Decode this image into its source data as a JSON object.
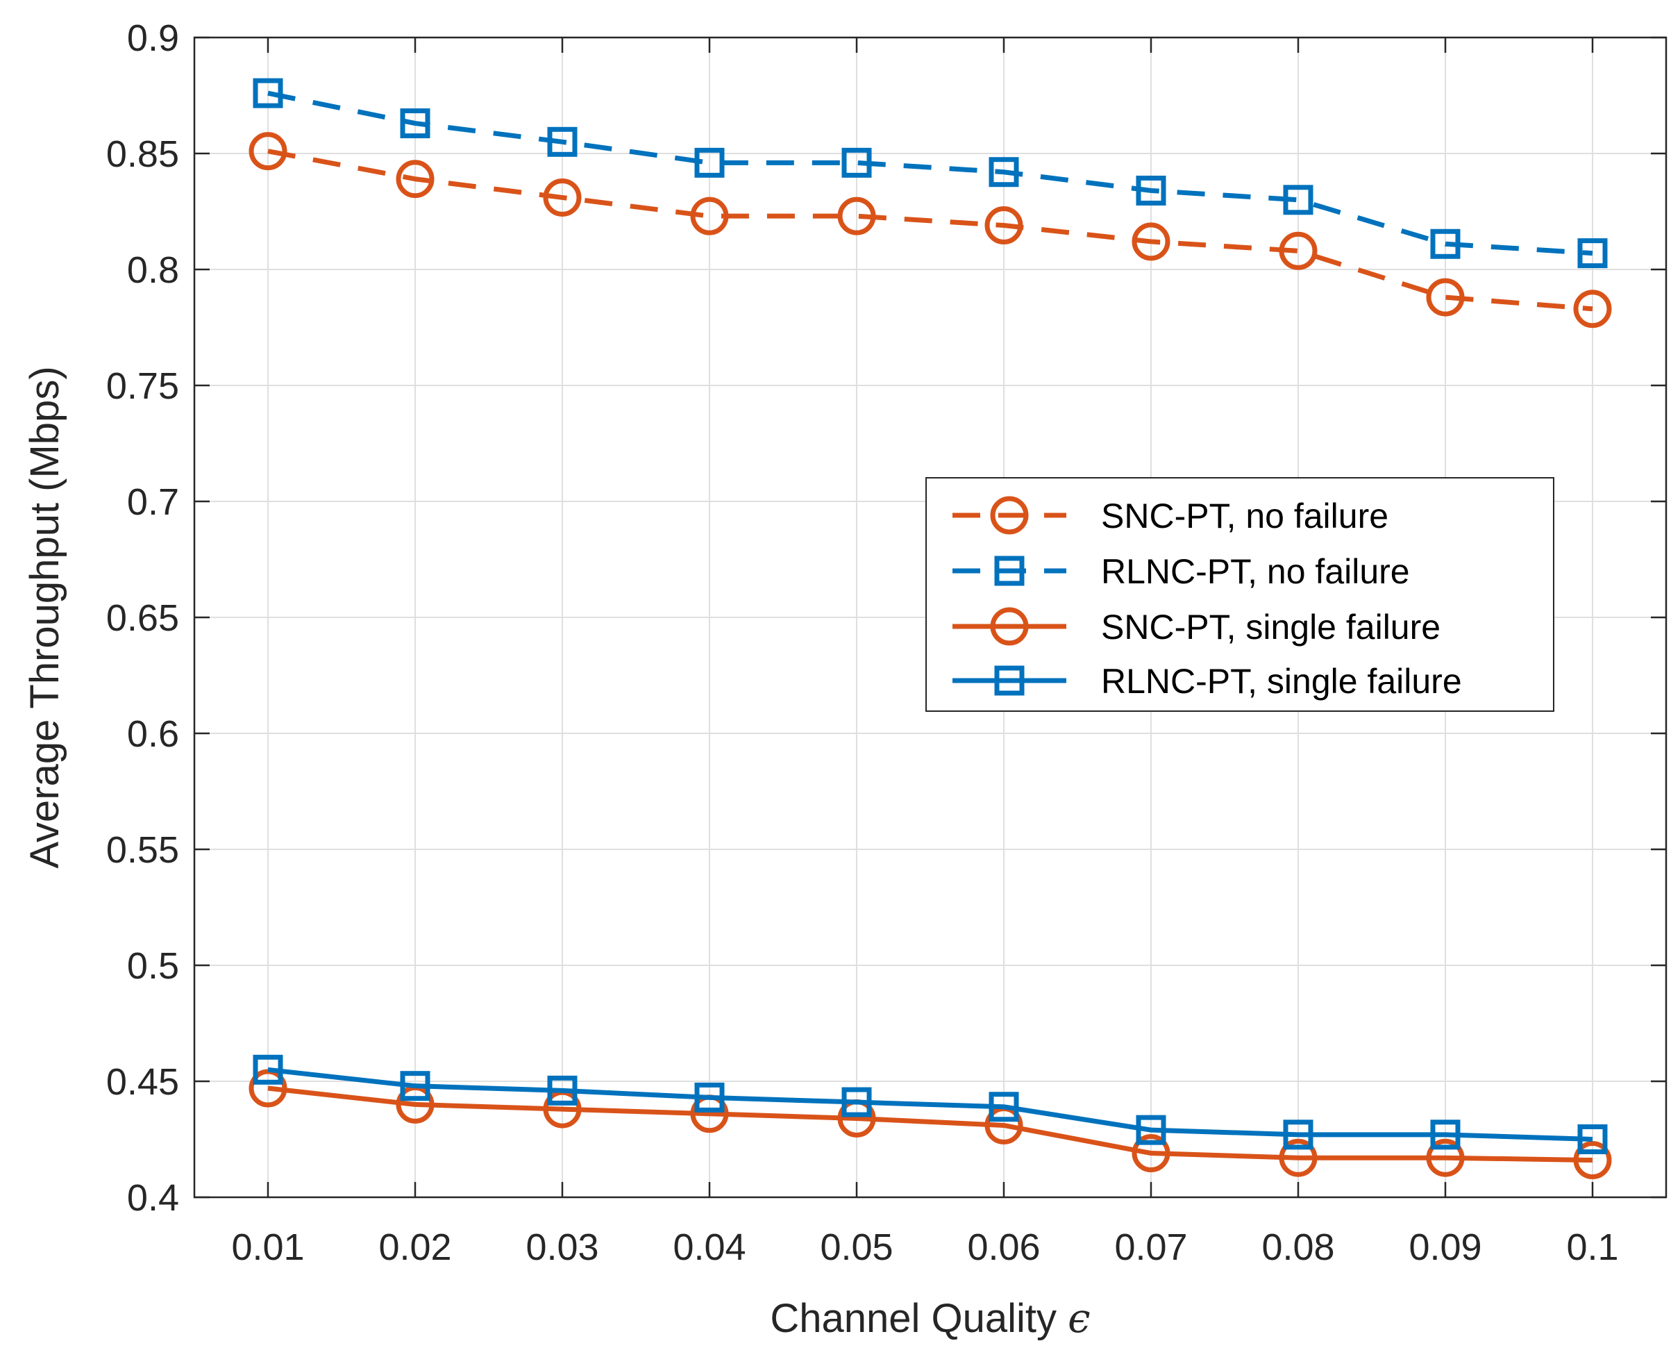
{
  "chart_data": {
    "type": "line",
    "title": "",
    "xlabel": "Channel Quality",
    "xlabel_symbol": "ϵ",
    "ylabel": "Average Throughput (Mbps)",
    "x": [
      0.01,
      0.02,
      0.03,
      0.04,
      0.05,
      0.06,
      0.07,
      0.08,
      0.09,
      0.1
    ],
    "x_tick_labels": [
      "0.01",
      "0.02",
      "0.03",
      "0.04",
      "0.05",
      "0.06",
      "0.07",
      "0.08",
      "0.09",
      "0.1"
    ],
    "xlim": [
      0.005,
      0.105
    ],
    "ylim": [
      0.4,
      0.9
    ],
    "y_ticks": [
      0.4,
      0.45,
      0.5,
      0.55,
      0.6,
      0.65,
      0.7,
      0.75,
      0.8,
      0.85,
      0.9
    ],
    "y_tick_labels": [
      "0.4",
      "0.45",
      "0.5",
      "0.55",
      "0.6",
      "0.65",
      "0.7",
      "0.75",
      "0.8",
      "0.85",
      "0.9"
    ],
    "grid": true,
    "legend_position": "center-right",
    "series": [
      {
        "name": "SNC-PT, no failure",
        "color": "#D95319",
        "line_style": "dashed",
        "marker": "circle",
        "values": [
          0.851,
          0.839,
          0.831,
          0.823,
          0.823,
          0.819,
          0.812,
          0.808,
          0.788,
          0.783
        ]
      },
      {
        "name": "RLNC-PT, no failure",
        "color": "#0072BD",
        "line_style": "dashed",
        "marker": "square",
        "values": [
          0.876,
          0.863,
          0.855,
          0.846,
          0.846,
          0.842,
          0.834,
          0.83,
          0.811,
          0.807
        ]
      },
      {
        "name": "SNC-PT, single failure",
        "color": "#D95319",
        "line_style": "solid",
        "marker": "circle",
        "values": [
          0.447,
          0.44,
          0.438,
          0.436,
          0.434,
          0.431,
          0.419,
          0.417,
          0.417,
          0.416
        ]
      },
      {
        "name": "RLNC-PT, single failure",
        "color": "#0072BD",
        "line_style": "solid",
        "marker": "square",
        "values": [
          0.455,
          0.448,
          0.446,
          0.443,
          0.441,
          0.439,
          0.429,
          0.427,
          0.427,
          0.425
        ]
      }
    ]
  }
}
